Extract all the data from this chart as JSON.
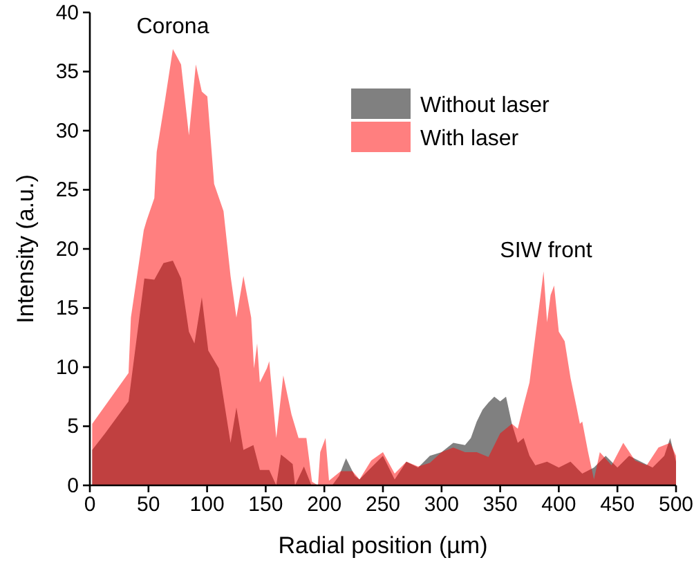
{
  "chart_data": {
    "type": "area",
    "xlabel": "Radial position (µm)",
    "ylabel": "Intensity (a.u.)",
    "xlim": [
      0,
      500
    ],
    "xticks": [
      0,
      50,
      100,
      150,
      200,
      250,
      300,
      350,
      400,
      450,
      500
    ],
    "ylim": [
      0,
      40
    ],
    "yticks": [
      0,
      5,
      10,
      15,
      20,
      25,
      30,
      35,
      40
    ],
    "legend": "top right",
    "grid": false,
    "annotations": [
      "Corona",
      "SIW front"
    ],
    "series": [
      {
        "name": "Without laser",
        "color": "#808080",
        "x": [
          2,
          13,
          33,
          46.5,
          55,
          62.8,
          70.8,
          77.8,
          84.5,
          89.2,
          95.5,
          101,
          110,
          120,
          125,
          131,
          139.5,
          145,
          153,
          159,
          163,
          167,
          173,
          175,
          182.6,
          189,
          206.7,
          212.6,
          218.5,
          226,
          230,
          240,
          250,
          260,
          270,
          280,
          290,
          300,
          310,
          320,
          325,
          330,
          335,
          340,
          345,
          350,
          355,
          360,
          365,
          370,
          375,
          380,
          390,
          400,
          410,
          420,
          430,
          440,
          450,
          460,
          470,
          480,
          490,
          495,
          500
        ],
        "values": [
          3.0,
          4.4,
          7.1,
          17.5,
          17.4,
          18.8,
          19,
          17.5,
          13,
          12,
          15.9,
          11.4,
          9.9,
          3.6,
          6.6,
          3,
          3.4,
          1.3,
          1.3,
          0,
          2.6,
          2.3,
          1.8,
          0,
          1.6,
          0,
          0,
          0.8,
          2.3,
          0.8,
          0.5,
          1.5,
          2.5,
          0.5,
          2,
          1.5,
          2.5,
          2.8,
          3.6,
          3.4,
          4,
          5.4,
          6.4,
          7,
          7.5,
          7.1,
          7.5,
          5.2,
          3.6,
          4,
          2.5,
          1.7,
          2,
          1.5,
          2,
          1,
          1.5,
          2.5,
          1.5,
          2.5,
          2,
          1.5,
          2.5,
          4,
          2
        ]
      },
      {
        "name": "With laser",
        "color": "#ff0000",
        "x": [
          2,
          33,
          35,
          46,
          48.4,
          55,
          57,
          64,
          70.8,
          77.8,
          84.5,
          90.4,
          95.5,
          100.2,
          106,
          114,
          120,
          125,
          131,
          137.6,
          140,
          142.7,
          145,
          151,
          153,
          159,
          165,
          172,
          178,
          184.7,
          189.5,
          194.6,
          196.5,
          201,
          204,
          214,
          224,
          230,
          240,
          250,
          260,
          270,
          280,
          290,
          300,
          310,
          320,
          330,
          340,
          350,
          360,
          365,
          370,
          375,
          380,
          385,
          387,
          390,
          393,
          396,
          400,
          405,
          410,
          415,
          418,
          420,
          425,
          430,
          435,
          445,
          455,
          465,
          475,
          485,
          495,
          500
        ],
        "values": [
          5.2,
          9.5,
          14.2,
          21.6,
          22.4,
          24.3,
          28.2,
          32.5,
          36.9,
          35.6,
          29.6,
          35.6,
          33.3,
          32.9,
          25.5,
          23.2,
          17.7,
          14.2,
          17.7,
          14.2,
          9.9,
          12,
          8.7,
          9.9,
          10.5,
          4,
          9.3,
          6,
          4,
          4,
          0.3,
          0,
          2.8,
          4,
          0.4,
          1.2,
          1.2,
          0.5,
          2.1,
          2.8,
          1,
          2,
          1.6,
          1.9,
          2.8,
          3.2,
          2.8,
          2.8,
          2.4,
          4.4,
          5.2,
          4.8,
          6.8,
          8.7,
          12.6,
          16.5,
          18.1,
          13.8,
          16.1,
          16.9,
          13,
          12.2,
          9.1,
          6.7,
          5.2,
          5.4,
          2.8,
          0.5,
          2.8,
          1.7,
          3.6,
          2.1,
          1.7,
          3.2,
          3.6,
          2.5
        ]
      }
    ]
  }
}
